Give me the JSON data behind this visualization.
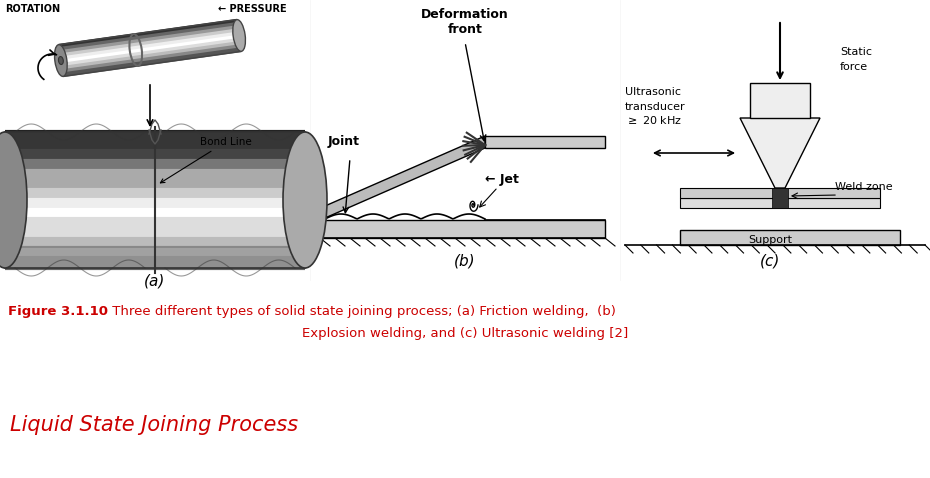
{
  "fig_width": 9.3,
  "fig_height": 4.78,
  "bg_color": "#ffffff",
  "text_color_red": "#cc0000",
  "caption_bold": "Figure 3.1.10",
  "caption_rest": " Three different types of solid state joining process; (a) Friction welding,  (b)",
  "caption_line2": "Explosion welding, and (c) Ultrasonic welding [2]",
  "section_heading": "Liquid State Joining Process",
  "label_a": "(a)",
  "label_b": "(b)",
  "label_c": "(c)"
}
